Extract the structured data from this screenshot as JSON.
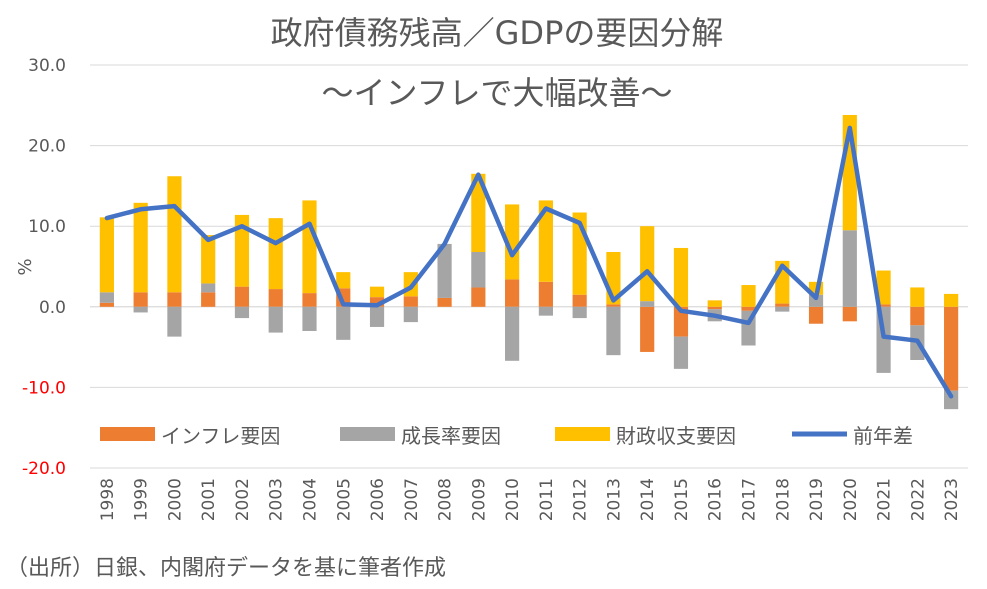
{
  "chart_data": {
    "type": "bar",
    "stacked": true,
    "title": "政府債務残高／GDPの要因分解",
    "subtitle": "～インフレで大幅改善～",
    "ylabel": "%",
    "source_note": "（出所）日銀、内閣府データを基に筆者作成",
    "ylim": [
      -20,
      30
    ],
    "yticks": [
      "30.0",
      "20.0",
      "10.0",
      "0.0",
      "-10.0",
      "-20.0"
    ],
    "ytick_values": [
      30,
      20,
      10,
      0,
      -10,
      -20
    ],
    "grid": true,
    "legend_position": "inside-bottom",
    "categories": [
      "1998",
      "1999",
      "2000",
      "2001",
      "2002",
      "2003",
      "2004",
      "2005",
      "2006",
      "2007",
      "2008",
      "2009",
      "2010",
      "2011",
      "2012",
      "2013",
      "2014",
      "2015",
      "2016",
      "2017",
      "2018",
      "2019",
      "2020",
      "2021",
      "2022",
      "2023"
    ],
    "series": [
      {
        "name": "インフレ要因",
        "kind": "bar",
        "color": "#ED7D31",
        "values": [
          0.5,
          1.8,
          1.8,
          1.8,
          2.5,
          2.2,
          1.7,
          2.3,
          1.2,
          1.3,
          1.1,
          2.4,
          3.4,
          3.1,
          1.5,
          0.3,
          -5.6,
          -3.7,
          -0.3,
          -0.5,
          0.4,
          -2.1,
          -1.8,
          0.3,
          -2.3,
          -10.4
        ]
      },
      {
        "name": "成長率要因",
        "kind": "bar",
        "color": "#A5A5A5",
        "values": [
          1.3,
          -0.7,
          -3.7,
          1.1,
          -1.4,
          -3.2,
          -3.0,
          -4.1,
          -2.5,
          -1.9,
          6.7,
          4.4,
          -6.7,
          -1.1,
          -1.4,
          -6.0,
          0.7,
          -4.0,
          -1.5,
          -4.3,
          -0.6,
          1.5,
          9.5,
          -8.2,
          -4.3,
          -2.3
        ]
      },
      {
        "name": "財政収支要因",
        "kind": "bar",
        "color": "#FFC000",
        "values": [
          9.3,
          11.1,
          14.4,
          6.0,
          8.9,
          8.8,
          11.5,
          2.0,
          1.3,
          3.0,
          0.0,
          9.7,
          9.3,
          10.1,
          10.2,
          6.5,
          9.3,
          7.3,
          0.8,
          2.7,
          5.3,
          1.6,
          14.3,
          4.2,
          2.4,
          1.6
        ]
      },
      {
        "name": "前年差",
        "kind": "line",
        "color": "#4472C4",
        "values": [
          11.0,
          12.1,
          12.5,
          8.3,
          10.0,
          7.9,
          10.3,
          0.3,
          0.2,
          2.4,
          7.8,
          16.4,
          6.4,
          12.2,
          10.4,
          0.8,
          4.4,
          -0.5,
          -1.1,
          -2.0,
          5.1,
          1.1,
          22.2,
          -3.7,
          -4.2,
          -11.1
        ]
      }
    ]
  }
}
